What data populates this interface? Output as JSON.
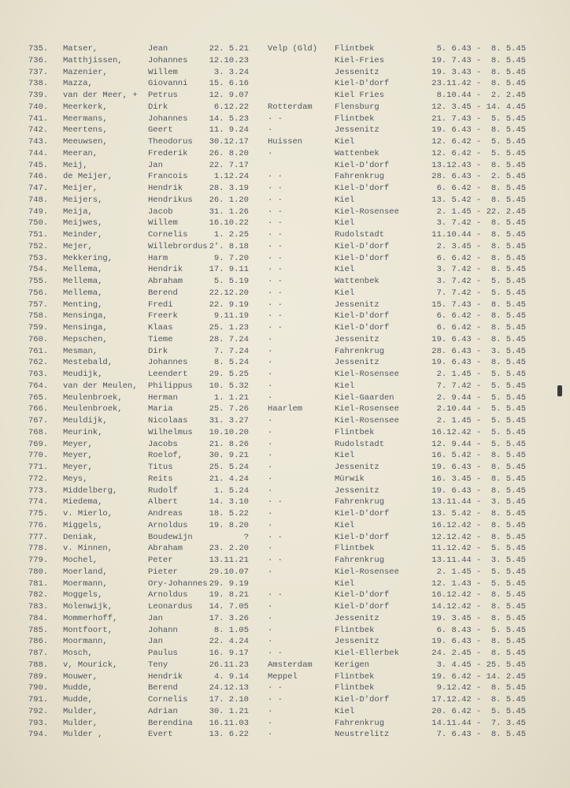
{
  "rows": [
    {
      "no": "735.",
      "surname": "Matser,",
      "first": "Jean",
      "born": "22. 5.21",
      "place": "Velp (Gld)",
      "camp": "Flintbek",
      "period": "5. 6.43 -  8. 5.45"
    },
    {
      "no": "736.",
      "surname": "Matthjissen,",
      "first": "Johannes",
      "born": "12.10.23",
      "place": "",
      "camp": "Kiel-Fries",
      "period": "19. 7.43 -  8. 5.45"
    },
    {
      "no": "737.",
      "surname": "Mazenier,",
      "first": "Willem",
      "born": "3. 3.24",
      "place": "",
      "camp": "Jessenitz",
      "period": "19. 3.43 -  8. 5.45"
    },
    {
      "no": "738.",
      "surname": "Mazza,",
      "first": "Giovanni",
      "born": "15. 6.16",
      "place": "",
      "camp": "Kiel-D'dorf",
      "period": "23.11.42 -  8. 5.45"
    },
    {
      "no": "739.",
      "surname": "van der Meer, +",
      "first": "Petrus",
      "born": "12. 9.07",
      "place": "",
      "camp": "Kiel Fries",
      "period": "8.10.44 -  2. 2.45"
    },
    {
      "no": "740.",
      "surname": "Meerkerk,",
      "first": "Dirk",
      "born": "6.12.22",
      "place": "Rotterdam",
      "camp": "Flensburg",
      "period": "12. 3.45 - 14. 4.45"
    },
    {
      "no": "741.",
      "surname": "Meermans,",
      "first": "Johannes",
      "born": "14. 5.23",
      "place": "· ·",
      "camp": "Flintbek",
      "period": "21. 7.43 -  5. 5.45"
    },
    {
      "no": "742.",
      "surname": "Meertens,",
      "first": "Geert",
      "born": "11. 9.24",
      "place": "·",
      "camp": "Jessenitz",
      "period": "19. 6.43 -  8. 5.45"
    },
    {
      "no": "743.",
      "surname": "Meeuwsen,",
      "first": "Theodorus",
      "born": "30.12.17",
      "place": "Huissen",
      "camp": "Kiel",
      "period": "12. 6.42 -  5. 5.45"
    },
    {
      "no": "744.",
      "surname": "Meeran,",
      "first": "Frederik",
      "born": "26. 8.20",
      "place": "·",
      "camp": "Wattenbek",
      "period": "12. 6.42 -  5. 5.45"
    },
    {
      "no": "745.",
      "surname": "Meij,",
      "first": "Jan",
      "born": "22. 7.17",
      "place": "",
      "camp": "Kiel-D'dorf",
      "period": "13.12.43 -  8. 5.45"
    },
    {
      "no": "746.",
      "surname": "de Meijer,",
      "first": "Francois",
      "born": "1.12.24",
      "place": "· ·",
      "camp": "Fahrenkrug",
      "period": "28. 6.43 -  2. 5.45"
    },
    {
      "no": "747.",
      "surname": "Meijer,",
      "first": "Hendrik",
      "born": "28. 3.19",
      "place": "· ·",
      "camp": "Kiel-D'dorf",
      "period": "6. 6.42 -  8. 5.45"
    },
    {
      "no": "748.",
      "surname": "Meijers,",
      "first": "Hendrikus",
      "born": "26. 1.20",
      "place": "· ·",
      "camp": "Kiel",
      "period": "13. 5.42 -  8. 5.45"
    },
    {
      "no": "749.",
      "surname": "Meija,",
      "first": "Jacob",
      "born": "31. 1.26",
      "place": "· ·",
      "camp": "Kiel-Rosensee",
      "period": "2. 1.45 - 22. 2.45"
    },
    {
      "no": "750.",
      "surname": "Meijwes,",
      "first": "Willem",
      "born": "16.10.22",
      "place": "· ·",
      "camp": "Kiel",
      "period": "3. 7.42 -  8. 5.45"
    },
    {
      "no": "751.",
      "surname": "Meinder,",
      "first": "Cornelis",
      "born": "1. 2.25",
      "place": "· ·",
      "camp": "Rudolstadt",
      "period": "11.10.44 -  8. 5.45"
    },
    {
      "no": "752.",
      "surname": "Mejer,",
      "first": "Willebrordus",
      "born": "2'. 8.18",
      "place": "· ·",
      "camp": "Kiel-D'dorf",
      "period": "2. 3.45 -  8. 5.45"
    },
    {
      "no": "753.",
      "surname": "Mekkering,",
      "first": "Harm",
      "born": "9. 7.20",
      "place": "· ·",
      "camp": "Kiel-D'dorf",
      "period": "6. 6.42 -  8. 5.45"
    },
    {
      "no": "754.",
      "surname": "Mellema,",
      "first": "Hendrik",
      "born": "17. 9.11",
      "place": "· ·",
      "camp": "Kiel",
      "period": "3. 7.42 -  8. 5.45"
    },
    {
      "no": "755.",
      "surname": "Mellema,",
      "first": "Abraham",
      "born": "5. 5.19",
      "place": "· ·",
      "camp": "Wattenbek",
      "period": "3. 7.42 -  5. 5.45"
    },
    {
      "no": "756.",
      "surname": "Mellema,",
      "first": "Berend",
      "born": "22.12.20",
      "place": "· ·",
      "camp": "Kiel",
      "period": "7. 7.42 -  5. 5.45"
    },
    {
      "no": "757.",
      "surname": "Menting,",
      "first": "Fredi",
      "born": "22. 9.19",
      "place": "· ·",
      "camp": "Jessenitz",
      "period": "15. 7.43 -  8. 5.45"
    },
    {
      "no": "758.",
      "surname": "Mensinga,",
      "first": "Freerk",
      "born": "9.11.19",
      "place": "· ·",
      "camp": "Kiel-D'dorf",
      "period": "6. 6.42 -  8. 5.45"
    },
    {
      "no": "759.",
      "surname": "Mensinga,",
      "first": "Klaas",
      "born": "25. 1.23",
      "place": "· ·",
      "camp": "Kiel-D'dorf",
      "period": "6. 6.42 -  8. 5.45"
    },
    {
      "no": "760.",
      "surname": "Mepschen,",
      "first": "Tieme",
      "born": "28. 7.24",
      "place": "·",
      "camp": "Jessenitz",
      "period": "19. 6.43 -  8. 5.45"
    },
    {
      "no": "761.",
      "surname": "Mesman,",
      "first": "Dirk",
      "born": "7. 7.24",
      "place": "·",
      "camp": "Fahrenkrug",
      "period": "28. 6.43 -  3. 5.45"
    },
    {
      "no": "762.",
      "surname": "Mestebald,",
      "first": "Johannes",
      "born": "8. 5.24",
      "place": "·",
      "camp": "Jessenitz",
      "period": "19. 6.43 -  8. 5.45"
    },
    {
      "no": "763.",
      "surname": "Meudijk,",
      "first": "Leendert",
      "born": "29. 5.25",
      "place": "·",
      "camp": "Kiel-Rosensee",
      "period": "2. 1.45 -  5. 5.45"
    },
    {
      "no": "764.",
      "surname": "van der Meulen,",
      "first": "Philippus",
      "born": "10. 5.32",
      "place": "·",
      "camp": "Kiel",
      "period": "7. 7.42 -  5. 5.45"
    },
    {
      "no": "765.",
      "surname": "Meulenbroek,",
      "first": "Herman",
      "born": "1. 1.21",
      "place": "·",
      "camp": "Kiel-Gaarden",
      "period": "2. 9.44 -  5. 5.45"
    },
    {
      "no": "766.",
      "surname": "Meulenbroek,",
      "first": "Maria",
      "born": "25. 7.26",
      "place": "Haarlem",
      "camp": "Kiel-Rosensee",
      "period": "2.10.44 -  5. 5.45"
    },
    {
      "no": "767.",
      "surname": "Meuldijk,",
      "first": "Nicolaas",
      "born": "31. 3.27",
      "place": "·",
      "camp": "Kiel-Rosensee",
      "period": "2. 1.45 -  5. 5.45"
    },
    {
      "no": "768.",
      "surname": "Meurink,",
      "first": "Wilhelmus",
      "born": "10.10.20",
      "place": "·",
      "camp": "Flintbek",
      "period": "16.12.42 -  5. 5.45"
    },
    {
      "no": "769.",
      "surname": "Meyer,",
      "first": "Jacobs",
      "born": "21. 8.26",
      "place": "·",
      "camp": "Rudolstadt",
      "period": "12. 9.44 -  5. 5.45"
    },
    {
      "no": "770.",
      "surname": "Meyer,",
      "first": "Roelof,",
      "born": "30. 9.21",
      "place": "·",
      "camp": "Kiel",
      "period": "16. 5.42 -  8. 5.45"
    },
    {
      "no": "771.",
      "surname": "Meyer,",
      "first": "Titus",
      "born": "25. 5.24",
      "place": "·",
      "camp": "Jessenitz",
      "period": "19. 6.43 -  8. 5.45"
    },
    {
      "no": "772.",
      "surname": "Meys,",
      "first": "Reits",
      "born": "21. 4.24",
      "place": "·",
      "camp": "Mürwik",
      "period": "16. 3.45 -  8. 5.45"
    },
    {
      "no": "773.",
      "surname": "Middelberg,",
      "first": "Rudolf",
      "born": "1. 5.24",
      "place": "·",
      "camp": "Jessenitz",
      "period": "19. 6.43 -  8. 5.45"
    },
    {
      "no": "774.",
      "surname": "Miedema,",
      "first": "Albert",
      "born": "14. 3.10",
      "place": "· ·",
      "camp": "Fahrenkrug",
      "period": "13.11.44 -  3. 5.45"
    },
    {
      "no": "775.",
      "surname": "v. Mierlo,",
      "first": "Andreas",
      "born": "18. 5.22",
      "place": "·",
      "camp": "Kiel-D'dorf",
      "period": "13. 5.42 -  8. 5.45"
    },
    {
      "no": "776.",
      "surname": "Miggels,",
      "first": "Arnoldus",
      "born": "19. 8.20",
      "place": "·",
      "camp": "Kiel",
      "period": "16.12.42 -  8. 5.45"
    },
    {
      "no": "777.",
      "surname": "Deniak,",
      "first": "Boudewijn",
      "born": "?",
      "place": "· ·",
      "camp": "Kiel-D'dorf",
      "period": "12.12.42 -  8. 5.45"
    },
    {
      "no": "778.",
      "surname": "v. Minnen,",
      "first": "Abraham",
      "born": "23. 2.20",
      "place": "·",
      "camp": "Flintbek",
      "period": "11.12.42 -  5. 5.45"
    },
    {
      "no": "779.",
      "surname": "Mochel,",
      "first": "Peter",
      "born": "13.11.21",
      "place": "· ·",
      "camp": "Fahrenkrug",
      "period": "13.11.44 -  3. 5.45"
    },
    {
      "no": "780.",
      "surname": "Moerland,",
      "first": "Pieter",
      "born": "29.10.07",
      "place": "·",
      "camp": "Kiel-Rosensee",
      "period": "2. 1.45 -  5. 5.45"
    },
    {
      "no": "781.",
      "surname": "Moermann,",
      "first": "Ory-Johannes",
      "born": "29. 9.19",
      "place": "",
      "camp": "Kiel",
      "period": "12. 1.43 -  5. 5.45"
    },
    {
      "no": "782.",
      "surname": "Moggels,",
      "first": "Arnoldus",
      "born": "19. 8.21",
      "place": "· ·",
      "camp": "Kiel-D'dorf",
      "period": "16.12.42 -  8. 5.45"
    },
    {
      "no": "783.",
      "surname": "Molenwijk,",
      "first": "Leonardus",
      "born": "14. 7.05",
      "place": "·",
      "camp": "Kiel-D'dorf",
      "period": "14.12.42 -  8. 5.45"
    },
    {
      "no": "784.",
      "surname": "Mommerhoff,",
      "first": "Jan",
      "born": "17. 3.26",
      "place": "·",
      "camp": "Jessenitz",
      "period": "19. 3.45 -  8. 5.45"
    },
    {
      "no": "785.",
      "surname": "Montfoort,",
      "first": "Johann",
      "born": "8. 1.05",
      "place": "·",
      "camp": "Flintbek",
      "period": "6. 8.43 -  5. 5.45"
    },
    {
      "no": "786.",
      "surname": "Moormann,",
      "first": "Jan",
      "born": "22. 4.24",
      "place": "·",
      "camp": "Jessenitz",
      "period": "19. 6.43 -  8. 5.45"
    },
    {
      "no": "787.",
      "surname": "Mosch,",
      "first": "Paulus",
      "born": "16. 9.17",
      "place": "· ·",
      "camp": "Kiel-Ellerbek",
      "period": "24. 2.45 -  8. 5.45"
    },
    {
      "no": "788.",
      "surname": "v, Mourick,",
      "first": "Teny",
      "born": "26.11.23",
      "place": "Amsterdam",
      "camp": "Kerigen",
      "period": "3. 4.45 - 25. 5.45"
    },
    {
      "no": "789.",
      "surname": "Mouwer,",
      "first": "Hendrik",
      "born": "4. 9.14",
      "place": "Meppel",
      "camp": "Flintbek",
      "period": "19. 6.42 - 14. 2.45"
    },
    {
      "no": "790.",
      "surname": "Mudde,",
      "first": "Berend",
      "born": "24.12.13",
      "place": "· ·",
      "camp": "Flintbek",
      "period": "9.12.42 -  8. 5.45"
    },
    {
      "no": "791.",
      "surname": "Mudde,",
      "first": "Cornelis",
      "born": "17. 2.10",
      "place": "· ·",
      "camp": "Kiel-D'dorf",
      "period": "17.12.42 -  8. 5.45"
    },
    {
      "no": "792.",
      "surname": "Mulder,",
      "first": "Adrian",
      "born": "30. 1.21",
      "place": "·",
      "camp": "Kiel",
      "period": "20. 6.42 -  5. 5.45"
    },
    {
      "no": "793.",
      "surname": "Mulder,",
      "first": "Berendina",
      "born": "16.11.03",
      "place": "·",
      "camp": "Fahrenkrug",
      "period": "14.11.44 -  7. 3.45"
    },
    {
      "no": "794.",
      "surname": "Mulder ,",
      "first": "Evert",
      "born": "13. 6.22",
      "place": "·",
      "camp": "Neustrelitz",
      "period": "7. 6.43 -  8. 5.45"
    }
  ]
}
